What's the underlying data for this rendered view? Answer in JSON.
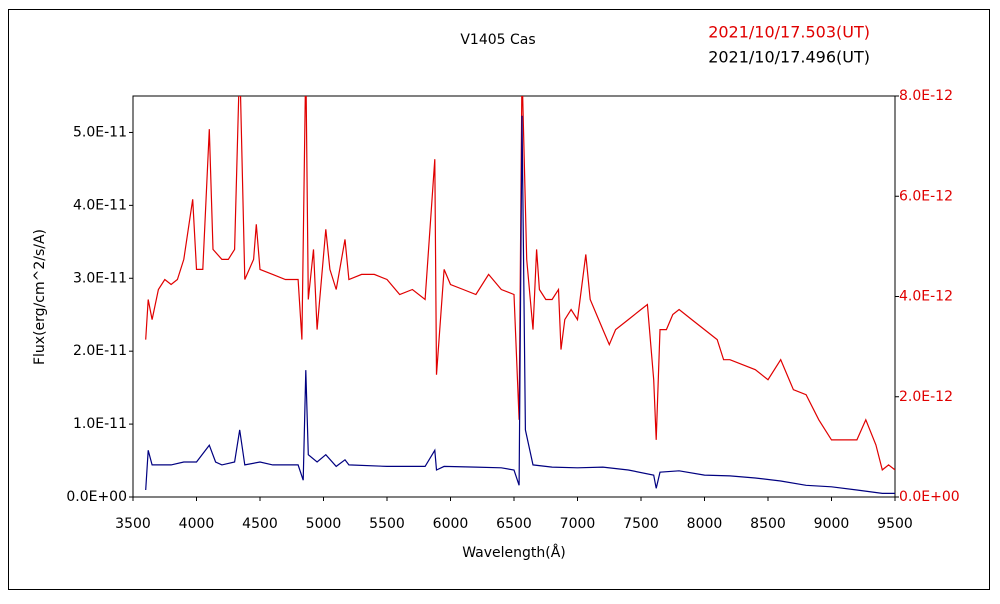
{
  "chart_data": {
    "type": "line",
    "title": "V1405 Cas",
    "x_label": "Wavelength(Å)",
    "y_label": "Flux(erg/cm^2/s/A)",
    "xlim": [
      3500,
      9500
    ],
    "xticks": [
      3500,
      4000,
      4500,
      5000,
      5500,
      6000,
      6500,
      7000,
      7500,
      8000,
      8500,
      9000,
      9500
    ],
    "ylim": [
      0,
      5.5e-11
    ],
    "yticks": [
      {
        "value": 0,
        "label": "0.0E+00"
      },
      {
        "value": 1e-11,
        "label": "1.0E-11"
      },
      {
        "value": 2e-11,
        "label": "2.0E-11"
      },
      {
        "value": 3e-11,
        "label": "3.0E-11"
      },
      {
        "value": 4e-11,
        "label": "4.0E-11"
      },
      {
        "value": 5e-11,
        "label": "5.0E-11"
      }
    ],
    "y2lim": [
      0,
      8e-12
    ],
    "y2ticks": [
      {
        "value": 0,
        "label": "0.0E+00"
      },
      {
        "value": 2e-12,
        "label": "2.0E-12"
      },
      {
        "value": 4e-12,
        "label": "4.0E-12"
      },
      {
        "value": 6e-12,
        "label": "6.0E-12"
      },
      {
        "value": 8e-12,
        "label": "8.0E-12"
      }
    ],
    "y2_color": "#e00000",
    "legend": "upper right",
    "grid": false,
    "series": [
      {
        "name": "2021/10/17.503(UT)",
        "color": "#e00000",
        "legend_text_color": "#e00000",
        "axis": "y2",
        "x": [
          3600,
          3620,
          3650,
          3700,
          3750,
          3800,
          3850,
          3900,
          3970,
          4000,
          4050,
          4101,
          4130,
          4200,
          4250,
          4300,
          4340,
          4380,
          4450,
          4471,
          4500,
          4600,
          4700,
          4800,
          4830,
          4861,
          4880,
          4921,
          4950,
          5018,
          5050,
          5100,
          5169,
          5200,
          5300,
          5400,
          5500,
          5600,
          5700,
          5800,
          5876,
          5890,
          5950,
          6000,
          6100,
          6200,
          6300,
          6400,
          6500,
          6540,
          6563,
          6600,
          6650,
          6678,
          6700,
          6750,
          6800,
          6850,
          6870,
          6900,
          6950,
          7000,
          7065,
          7100,
          7200,
          7250,
          7300,
          7400,
          7500,
          7550,
          7600,
          7620,
          7650,
          7700,
          7750,
          7800,
          7900,
          8000,
          8100,
          8150,
          8200,
          8300,
          8400,
          8500,
          8600,
          8700,
          8800,
          8900,
          9000,
          9100,
          9200,
          9270,
          9350,
          9400,
          9450,
          9500
        ],
        "values": [
          3.14e-12,
          3.94e-12,
          3.54e-12,
          4.14e-12,
          4.34e-12,
          4.24e-12,
          4.34e-12,
          4.74e-12,
          5.94e-12,
          4.54e-12,
          4.54e-12,
          7.34e-12,
          4.94e-12,
          4.74e-12,
          4.74e-12,
          4.94e-12,
          8.74e-12,
          4.34e-12,
          4.74e-12,
          5.44e-12,
          4.54e-12,
          4.44e-12,
          4.34e-12,
          4.34e-12,
          3.14e-12,
          8.74e-12,
          3.94e-12,
          4.94e-12,
          3.34e-12,
          5.34e-12,
          4.54e-12,
          4.14e-12,
          5.14e-12,
          4.34e-12,
          4.44e-12,
          4.44e-12,
          4.34e-12,
          4.04e-12,
          4.14e-12,
          3.94e-12,
          6.74e-12,
          2.44e-12,
          4.54e-12,
          4.24e-12,
          4.14e-12,
          4.04e-12,
          4.44e-12,
          4.14e-12,
          4.04e-12,
          1.54e-12,
          8.54e-12,
          4.74e-12,
          3.34e-12,
          4.94e-12,
          4.14e-12,
          3.94e-12,
          3.94e-12,
          4.14e-12,
          2.94e-12,
          3.54e-12,
          3.74e-12,
          3.54e-12,
          4.84e-12,
          3.94e-12,
          3.34e-12,
          3.04e-12,
          3.34e-12,
          3.54e-12,
          3.74e-12,
          3.84e-12,
          2.34e-12,
          1.14e-12,
          3.34e-12,
          3.34e-12,
          3.64e-12,
          3.74e-12,
          3.54e-12,
          3.34e-12,
          3.14e-12,
          2.74e-12,
          2.74e-12,
          2.64e-12,
          2.54e-12,
          2.34e-12,
          2.74e-12,
          2.14e-12,
          2.04e-12,
          1.54e-12,
          1.14e-12,
          1.14e-12,
          1.14e-12,
          1.54e-12,
          1.04e-12,
          5.4e-13,
          6.4e-13,
          5.4e-13
        ]
      },
      {
        "name": "2021/10/17.496(UT)",
        "color": "#000080",
        "legend_text_color": "#000000",
        "axis": "y",
        "x": [
          3600,
          3620,
          3650,
          3700,
          3800,
          3900,
          4000,
          4101,
          4150,
          4200,
          4300,
          4340,
          4380,
          4500,
          4600,
          4800,
          4840,
          4861,
          4880,
          4950,
          5018,
          5100,
          5169,
          5200,
          5500,
          5800,
          5876,
          5890,
          5950,
          6200,
          6400,
          6500,
          6540,
          6563,
          6590,
          6650,
          6800,
          7000,
          7200,
          7400,
          7600,
          7620,
          7650,
          7800,
          8000,
          8200,
          8400,
          8600,
          8800,
          9000,
          9200,
          9400,
          9500
        ],
        "values": [
          9.6e-13,
          6.4e-12,
          4.4e-12,
          4.4e-12,
          4.4e-12,
          4.8e-12,
          4.8e-12,
          7.1e-12,
          4.8e-12,
          4.4e-12,
          4.8e-12,
          9.2e-12,
          4.4e-12,
          4.8e-12,
          4.4e-12,
          4.4e-12,
          2.3e-12,
          1.74e-11,
          5.8e-12,
          4.8e-12,
          5.8e-12,
          4.2e-12,
          5.1e-12,
          4.4e-12,
          4.2e-12,
          4.2e-12,
          6.4e-12,
          3.7e-12,
          4.2e-12,
          4.1e-12,
          4e-12,
          3.7e-12,
          1.6e-12,
          5.23e-11,
          9.2e-12,
          4.4e-12,
          4.1e-12,
          4e-12,
          4.1e-12,
          3.7e-12,
          3e-12,
          1.2e-12,
          3.4e-12,
          3.6e-12,
          3e-12,
          2.9e-12,
          2.6e-12,
          2.2e-12,
          1.6e-12,
          1.4e-12,
          9.6e-13,
          5e-13,
          5e-13
        ]
      }
    ]
  }
}
